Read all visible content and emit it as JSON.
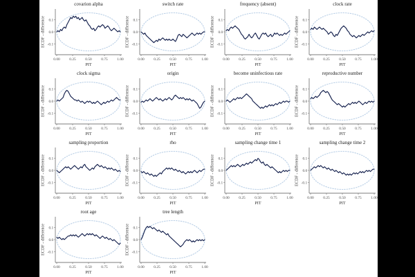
{
  "figure": {
    "background": "#000000",
    "panel_background": "#ffffff",
    "x_label": "PIT",
    "y_label": "ECDF - difference",
    "x_ticks": [
      "0.00",
      "0.25",
      "0.50",
      "0.75",
      "1.00"
    ],
    "y_ticks": [
      "0.1",
      "0.0",
      "-0.1"
    ],
    "colors": {
      "line": "#14204d",
      "band": "#b9cfe6",
      "axis": "#7d7d7d",
      "tick_text": "#474747"
    }
  },
  "chart_data": {
    "type": "line",
    "layout": "grid-4-columns",
    "xlabel": "PIT",
    "ylabel": "ECDF - difference",
    "xlim": [
      0,
      1
    ],
    "ylim": [
      -0.19,
      0.19
    ],
    "band": {
      "shape": "ellipse",
      "center": [
        0.5,
        0.0
      ],
      "rx": 0.48,
      "ry": 0.158,
      "style": "dotted"
    },
    "panels": [
      {
        "title": "covarion alpha",
        "values": [
          0.0,
          0.01,
          0.0,
          0.02,
          0.01,
          0.03,
          0.04,
          0.03,
          0.06,
          0.08,
          0.1,
          0.12,
          0.11,
          0.13,
          0.12,
          0.13,
          0.11,
          0.12,
          0.1,
          0.11,
          0.12,
          0.1,
          0.09,
          0.1,
          0.08,
          0.06,
          0.05,
          0.03,
          0.02,
          0.03,
          0.01,
          0.02,
          0.04,
          0.05,
          0.04,
          0.05,
          0.06,
          0.05,
          0.03,
          0.04,
          0.05,
          0.04,
          0.02,
          0.01,
          0.02,
          0.03,
          0.02,
          0.01,
          0.0,
          0.01,
          0.0
        ]
      },
      {
        "title": "switch rate",
        "values": [
          0.0,
          -0.01,
          -0.02,
          -0.01,
          -0.03,
          -0.04,
          -0.05,
          -0.06,
          -0.07,
          -0.08,
          -0.09,
          -0.08,
          -0.07,
          -0.08,
          -0.06,
          -0.07,
          -0.06,
          -0.05,
          -0.06,
          -0.07,
          -0.06,
          -0.07,
          -0.06,
          -0.07,
          -0.07,
          -0.06,
          -0.07,
          -0.08,
          -0.06,
          -0.03,
          -0.02,
          -0.03,
          -0.04,
          -0.02,
          -0.03,
          -0.04,
          -0.05,
          -0.04,
          -0.03,
          -0.02,
          -0.01,
          -0.02,
          -0.03,
          -0.02,
          -0.01,
          -0.02,
          -0.01,
          -0.02,
          -0.01,
          0.0,
          0.0
        ]
      },
      {
        "title": "frequency (absent)",
        "values": [
          0.01,
          0.02,
          0.01,
          0.03,
          0.04,
          0.03,
          0.04,
          0.05,
          0.04,
          0.03,
          0.02,
          0.0,
          -0.02,
          -0.03,
          -0.05,
          -0.06,
          -0.05,
          -0.04,
          -0.02,
          -0.04,
          -0.05,
          -0.04,
          -0.02,
          -0.01,
          -0.03,
          -0.05,
          -0.06,
          -0.04,
          -0.02,
          -0.01,
          -0.02,
          -0.01,
          -0.03,
          -0.04,
          -0.03,
          -0.02,
          -0.04,
          -0.03,
          -0.01,
          -0.02,
          -0.01,
          -0.02,
          -0.03,
          -0.02,
          -0.03,
          -0.02,
          -0.01,
          -0.02,
          -0.01,
          0.0,
          0.01
        ]
      },
      {
        "title": "clock rate",
        "values": [
          0.02,
          0.03,
          0.02,
          0.04,
          0.03,
          0.02,
          0.03,
          0.04,
          0.03,
          0.02,
          0.03,
          0.02,
          0.01,
          0.0,
          -0.02,
          -0.01,
          0.0,
          -0.01,
          -0.03,
          -0.04,
          -0.02,
          -0.03,
          -0.01,
          0.01,
          0.03,
          0.04,
          0.05,
          0.04,
          0.03,
          0.01,
          0.0,
          -0.02,
          -0.03,
          -0.04,
          -0.03,
          -0.04,
          -0.05,
          -0.04,
          -0.03,
          -0.04,
          -0.03,
          -0.02,
          -0.03,
          -0.02,
          -0.01,
          0.0,
          -0.01,
          0.0,
          0.01,
          0.0,
          0.01
        ]
      },
      {
        "title": "clock sigma",
        "values": [
          0.0,
          0.01,
          0.0,
          0.01,
          0.02,
          0.03,
          0.06,
          0.08,
          0.09,
          0.08,
          0.06,
          0.04,
          0.03,
          0.02,
          0.01,
          0.01,
          0.0,
          0.01,
          0.0,
          -0.01,
          0.0,
          -0.01,
          -0.02,
          -0.01,
          0.0,
          -0.01,
          0.0,
          -0.01,
          -0.02,
          -0.01,
          -0.02,
          -0.01,
          0.0,
          -0.01,
          -0.02,
          -0.03,
          -0.02,
          -0.01,
          -0.02,
          -0.01,
          0.0,
          -0.01,
          0.0,
          0.01,
          0.0,
          0.01,
          0.02,
          0.03,
          0.02,
          0.01,
          0.01
        ]
      },
      {
        "title": "origin",
        "values": [
          -0.01,
          0.0,
          -0.01,
          0.0,
          0.01,
          0.0,
          0.01,
          0.02,
          0.01,
          0.0,
          0.01,
          0.02,
          0.03,
          0.02,
          0.01,
          0.02,
          0.01,
          0.0,
          0.01,
          0.02,
          0.01,
          0.02,
          0.03,
          0.02,
          0.01,
          0.02,
          0.04,
          0.05,
          0.04,
          0.03,
          0.02,
          0.03,
          0.02,
          0.03,
          0.02,
          0.01,
          0.02,
          0.01,
          0.02,
          0.01,
          0.0,
          0.01,
          0.0,
          -0.01,
          -0.02,
          -0.04,
          -0.06,
          -0.05,
          -0.03,
          -0.01,
          0.0
        ]
      },
      {
        "title": "become uninfectious rate",
        "values": [
          0.0,
          0.01,
          0.0,
          -0.01,
          0.0,
          0.01,
          0.02,
          0.01,
          0.02,
          0.03,
          0.02,
          0.03,
          0.02,
          0.03,
          0.04,
          0.05,
          0.06,
          0.05,
          0.04,
          0.03,
          0.02,
          0.0,
          -0.01,
          -0.02,
          -0.03,
          -0.04,
          -0.05,
          -0.06,
          -0.05,
          -0.06,
          -0.05,
          -0.04,
          -0.05,
          -0.04,
          -0.03,
          -0.04,
          -0.03,
          -0.04,
          -0.03,
          -0.02,
          -0.03,
          -0.02,
          -0.01,
          -0.02,
          -0.01,
          0.0,
          -0.01,
          0.0,
          0.0,
          -0.01,
          0.0
        ]
      },
      {
        "title": "reproductive number",
        "values": [
          0.02,
          0.03,
          0.02,
          0.03,
          0.04,
          0.03,
          0.04,
          0.05,
          0.07,
          0.08,
          0.09,
          0.08,
          0.07,
          0.08,
          0.07,
          0.05,
          0.03,
          0.01,
          0.0,
          -0.01,
          -0.02,
          -0.03,
          -0.02,
          -0.03,
          -0.04,
          -0.05,
          -0.04,
          -0.05,
          -0.04,
          -0.03,
          -0.02,
          -0.03,
          -0.02,
          -0.01,
          -0.02,
          -0.01,
          -0.02,
          -0.01,
          0.0,
          -0.01,
          -0.02,
          -0.03,
          -0.02,
          -0.01,
          -0.02,
          -0.01,
          0.0,
          -0.01,
          0.0,
          -0.01,
          0.0
        ]
      },
      {
        "title": "sampling proportion",
        "values": [
          0.0,
          -0.01,
          -0.02,
          -0.01,
          0.0,
          0.01,
          0.02,
          0.03,
          0.02,
          0.03,
          0.02,
          0.01,
          0.02,
          0.03,
          0.04,
          0.03,
          0.02,
          0.01,
          0.02,
          0.03,
          0.02,
          0.04,
          0.05,
          0.03,
          0.02,
          0.01,
          0.0,
          0.01,
          0.02,
          0.01,
          0.03,
          0.04,
          0.05,
          0.04,
          0.03,
          0.04,
          0.03,
          0.02,
          0.03,
          0.02,
          0.01,
          0.02,
          0.01,
          0.02,
          0.01,
          0.0,
          0.01,
          0.0,
          -0.01,
          0.0,
          -0.01
        ]
      },
      {
        "title": "rho",
        "values": [
          -0.01,
          -0.02,
          -0.01,
          -0.02,
          -0.03,
          -0.02,
          -0.03,
          -0.04,
          -0.03,
          -0.04,
          -0.05,
          -0.04,
          -0.05,
          -0.04,
          -0.03,
          -0.02,
          -0.03,
          -0.01,
          0.0,
          0.01,
          0.02,
          0.01,
          0.02,
          0.01,
          0.02,
          0.01,
          0.0,
          0.01,
          0.0,
          -0.01,
          0.0,
          -0.01,
          -0.02,
          -0.01,
          -0.02,
          -0.03,
          -0.02,
          -0.01,
          -0.02,
          -0.01,
          -0.02,
          -0.01,
          0.0,
          -0.01,
          -0.02,
          -0.01,
          0.0,
          -0.01,
          0.0,
          0.01,
          0.01
        ]
      },
      {
        "title": "sampling change time 1",
        "values": [
          0.0,
          0.01,
          0.02,
          0.03,
          0.04,
          0.03,
          0.04,
          0.03,
          0.04,
          0.05,
          0.04,
          0.03,
          0.04,
          0.05,
          0.04,
          0.05,
          0.06,
          0.05,
          0.06,
          0.07,
          0.06,
          0.07,
          0.08,
          0.09,
          0.08,
          0.1,
          0.09,
          0.07,
          0.06,
          0.07,
          0.05,
          0.04,
          0.05,
          0.04,
          0.03,
          0.02,
          0.03,
          0.02,
          0.01,
          0.0,
          -0.01,
          -0.02,
          -0.01,
          -0.02,
          -0.01,
          0.0,
          -0.01,
          0.0,
          -0.01,
          0.0,
          0.0
        ]
      },
      {
        "title": "sampling change time 2",
        "values": [
          0.0,
          0.01,
          0.02,
          0.03,
          0.02,
          0.03,
          0.04,
          0.03,
          0.04,
          0.03,
          0.02,
          0.03,
          0.02,
          0.01,
          0.02,
          0.01,
          0.0,
          0.01,
          0.0,
          -0.01,
          0.0,
          -0.01,
          -0.02,
          -0.01,
          -0.02,
          -0.03,
          -0.02,
          -0.03,
          -0.04,
          -0.03,
          -0.04,
          -0.03,
          -0.04,
          -0.03,
          -0.02,
          -0.03,
          -0.02,
          -0.03,
          -0.02,
          -0.01,
          -0.02,
          -0.01,
          -0.02,
          -0.01,
          0.0,
          -0.01,
          0.0,
          -0.01,
          0.0,
          0.01,
          0.01
        ]
      },
      {
        "title": "root age",
        "values": [
          0.02,
          0.01,
          0.02,
          0.01,
          0.0,
          0.01,
          0.0,
          0.01,
          0.02,
          0.03,
          0.03,
          0.04,
          0.03,
          0.04,
          0.03,
          0.04,
          0.03,
          0.02,
          0.03,
          0.04,
          0.05,
          0.04,
          0.03,
          0.04,
          0.05,
          0.04,
          0.05,
          0.04,
          0.05,
          0.04,
          0.03,
          0.04,
          0.03,
          0.02,
          0.01,
          0.02,
          0.03,
          0.02,
          0.01,
          0.02,
          0.01,
          0.0,
          0.01,
          0.0,
          -0.01,
          0.0,
          -0.01,
          -0.02,
          -0.03,
          -0.04,
          -0.03
        ]
      },
      {
        "title": "tree length",
        "values": [
          0.0,
          0.02,
          0.05,
          0.08,
          0.1,
          0.11,
          0.1,
          0.11,
          0.1,
          0.09,
          0.1,
          0.09,
          0.08,
          0.07,
          0.08,
          0.07,
          0.06,
          0.07,
          0.06,
          0.05,
          0.04,
          0.05,
          0.03,
          0.02,
          0.01,
          0.0,
          -0.01,
          -0.02,
          -0.03,
          -0.04,
          -0.05,
          -0.06,
          -0.05,
          -0.04,
          -0.02,
          -0.01,
          0.0,
          -0.01,
          0.0,
          -0.01,
          -0.02,
          -0.01,
          -0.02,
          -0.01,
          0.0,
          -0.01,
          0.0,
          -0.01,
          0.0,
          -0.01,
          0.0
        ]
      }
    ]
  }
}
